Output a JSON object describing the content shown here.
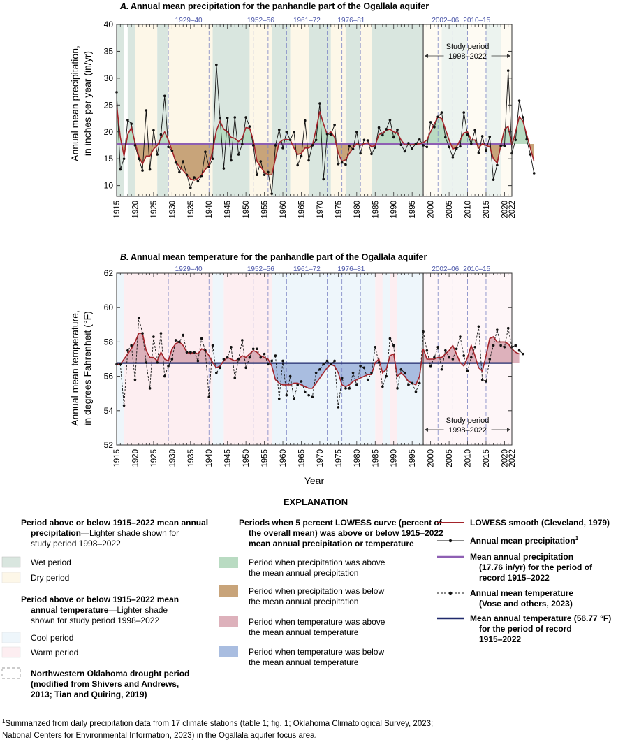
{
  "chart_data": [
    {
      "type": "line",
      "title_letter": "A.",
      "title": "Annual mean precipitation for the panhandle part of the Ogallala aquifer",
      "ylabel_line1": "Annual mean precipitation,",
      "ylabel_line2": "in inches per year (in/yr)",
      "xlabel": "",
      "ylim": [
        8,
        40
      ],
      "yticks": [
        10,
        15,
        20,
        25,
        30,
        35,
        40
      ],
      "xlim": [
        1915,
        2022
      ],
      "xticks": [
        1915,
        1920,
        1925,
        1930,
        1935,
        1940,
        1945,
        1950,
        1955,
        1960,
        1965,
        1970,
        1975,
        1980,
        1985,
        1990,
        1995,
        2000,
        2005,
        2010,
        2015,
        2020,
        2022
      ],
      "mean_line": 17.76,
      "study_label_line1": "Study period",
      "study_label_line2": "1998–2022",
      "study_start": 1998,
      "periods": [
        {
          "start": 1915,
          "end": 1917,
          "kind": "wet"
        },
        {
          "start": 1918,
          "end": 1920,
          "kind": "wet"
        },
        {
          "start": 1920,
          "end": 1926,
          "kind": "dry"
        },
        {
          "start": 1926,
          "end": 1929,
          "kind": "wet"
        },
        {
          "start": 1929,
          "end": 1941,
          "kind": "dry"
        },
        {
          "start": 1941,
          "end": 1951,
          "kind": "wet"
        },
        {
          "start": 1951,
          "end": 1957,
          "kind": "dry"
        },
        {
          "start": 1957,
          "end": 1962,
          "kind": "wet"
        },
        {
          "start": 1962,
          "end": 1967,
          "kind": "dry"
        },
        {
          "start": 1967,
          "end": 1973,
          "kind": "wet"
        },
        {
          "start": 1973,
          "end": 1977,
          "kind": "dry"
        },
        {
          "start": 1977,
          "end": 1981,
          "kind": "wet"
        },
        {
          "start": 1981,
          "end": 1984,
          "kind": "dry"
        },
        {
          "start": 1984,
          "end": 1998,
          "kind": "wet"
        },
        {
          "start": 1998,
          "end": 2003,
          "kind": "dry"
        },
        {
          "start": 2003,
          "end": 2010,
          "kind": "wet"
        },
        {
          "start": 2010,
          "end": 2015,
          "kind": "dry"
        },
        {
          "start": 2015,
          "end": 2019,
          "kind": "wet"
        },
        {
          "start": 2019,
          "end": 2022,
          "kind": "dry"
        }
      ],
      "droughts": [
        {
          "start": 1929,
          "end": 1940,
          "label": "1929–40"
        },
        {
          "start": 1952,
          "end": 1956,
          "label": "1952–56"
        },
        {
          "start": 1961,
          "end": 1972,
          "label": "1961–72"
        },
        {
          "start": 1976,
          "end": 1981,
          "label": "1976–81"
        },
        {
          "start": 2002,
          "end": 2006,
          "label": "2002–06"
        },
        {
          "start": 2010,
          "end": 2015,
          "label": "2010–15"
        }
      ],
      "series": [
        {
          "name": "Annual mean precipitation",
          "values": [
            27.4,
            13.0,
            15.0,
            22.2,
            21.5,
            17.5,
            15.0,
            12.8,
            24.0,
            13.0,
            20.3,
            15.8,
            19.5,
            26.7,
            17.2,
            16.5,
            14.3,
            12.5,
            14.5,
            12.0,
            9.6,
            11.5,
            10.8,
            11.7,
            16.3,
            13.5,
            15.0,
            32.5,
            22.5,
            13.2,
            22.6,
            14.7,
            22.7,
            15.8,
            17.7,
            22.7,
            21.0,
            17.5,
            12.0,
            14.5,
            12.0,
            12.5,
            8.5,
            17.5,
            20.4,
            17.0,
            20.0,
            18.5,
            20.0,
            13.8,
            15.5,
            22.1,
            14.7,
            17.5,
            18.5,
            25.3,
            11.2,
            19.6,
            19.5,
            21.3,
            14.0,
            14.3,
            13.9,
            17.3,
            16.8,
            20.0,
            16.0,
            18.5,
            18.4,
            15.9,
            17.1,
            20.8,
            19.4,
            20.5,
            22.2,
            19.0,
            20.4,
            17.6,
            16.4,
            17.9,
            16.9,
            17.8,
            18.6,
            17.5,
            17.2,
            21.8,
            20.9,
            22.8,
            23.6,
            19.0,
            17.2,
            15.3,
            16.9,
            17.3,
            23.6,
            19.5,
            17.8,
            20.3,
            16.1,
            19.2,
            16.5,
            19.1,
            11.1,
            13.8,
            17.4,
            17.4,
            31.4,
            16.0,
            18.5,
            25.8,
            22.7,
            18.6,
            15.8,
            12.3
          ]
        },
        {
          "name": "LOWESS smooth",
          "values": [
            25.0,
            19.0,
            15.5,
            19.5,
            20.8,
            18.0,
            15.5,
            14.0,
            15.5,
            15.5,
            16.8,
            17.5,
            18.8,
            20.0,
            18.5,
            16.5,
            14.5,
            13.5,
            12.8,
            12.0,
            11.2,
            11.0,
            11.3,
            12.0,
            13.0,
            13.8,
            16.5,
            20.2,
            22.0,
            20.5,
            20.0,
            19.0,
            18.8,
            18.2,
            18.8,
            20.8,
            20.7,
            18.5,
            14.5,
            13.5,
            12.5,
            12.0,
            12.0,
            15.0,
            18.0,
            18.5,
            18.6,
            18.5,
            17.0,
            15.8,
            16.0,
            17.0,
            17.0,
            17.5,
            20.5,
            23.8,
            21.5,
            19.5,
            20.0,
            19.0,
            16.0,
            14.5,
            14.8,
            16.0,
            17.0,
            17.8,
            17.5,
            17.8,
            18.0,
            17.2,
            17.5,
            19.5,
            19.8,
            20.3,
            20.5,
            20.0,
            19.8,
            18.5,
            17.6,
            17.6,
            17.6,
            17.7,
            17.8,
            18.0,
            18.5,
            20.0,
            21.5,
            22.8,
            22.5,
            20.5,
            18.5,
            16.8,
            17.2,
            18.5,
            19.8,
            20.0,
            18.5,
            18.5,
            17.0,
            17.8,
            17.5,
            17.2,
            15.0,
            14.2,
            17.5,
            20.5,
            21.0,
            17.5,
            20.0,
            22.8,
            22.0,
            19.5,
            17.0,
            14.5
          ]
        }
      ]
    },
    {
      "type": "line",
      "title_letter": "B.",
      "title": "Annual mean temperature for the panhandle part of the Ogallala aquifer",
      "ylabel_line1": "Annual mean temperature,",
      "ylabel_line2": "in degrees Fahrenheit (°F)",
      "xlabel": "Year",
      "ylim": [
        52,
        62
      ],
      "yticks": [
        52,
        54,
        56,
        58,
        60,
        62
      ],
      "xlim": [
        1915,
        2022
      ],
      "xticks": [
        1915,
        1920,
        1925,
        1930,
        1935,
        1940,
        1945,
        1950,
        1955,
        1960,
        1965,
        1970,
        1975,
        1980,
        1985,
        1990,
        1995,
        2000,
        2005,
        2010,
        2015,
        2020,
        2022
      ],
      "mean_line": 56.77,
      "study_label_line1": "Study period",
      "study_label_line2": "1998–2022",
      "study_start": 1998,
      "periods": [
        {
          "start": 1915,
          "end": 1917,
          "kind": "cool"
        },
        {
          "start": 1917,
          "end": 1941,
          "kind": "warm"
        },
        {
          "start": 1941,
          "end": 1944,
          "kind": "cool"
        },
        {
          "start": 1944,
          "end": 1957,
          "kind": "warm"
        },
        {
          "start": 1957,
          "end": 1985,
          "kind": "cool"
        },
        {
          "start": 1985,
          "end": 1987,
          "kind": "warm"
        },
        {
          "start": 1987,
          "end": 1989,
          "kind": "cool"
        },
        {
          "start": 1989,
          "end": 1991,
          "kind": "warm"
        },
        {
          "start": 1991,
          "end": 1998,
          "kind": "cool"
        },
        {
          "start": 1998,
          "end": 2022,
          "kind": "warm"
        }
      ],
      "droughts": [
        {
          "start": 1929,
          "end": 1940,
          "label": "1929–40"
        },
        {
          "start": 1952,
          "end": 1956,
          "label": "1952–56"
        },
        {
          "start": 1961,
          "end": 1972,
          "label": "1961–72"
        },
        {
          "start": 1976,
          "end": 1981,
          "label": "1976–81"
        },
        {
          "start": 2002,
          "end": 2006,
          "label": "2002–06"
        },
        {
          "start": 2010,
          "end": 2015,
          "label": "2010–15"
        }
      ],
      "series": [
        {
          "name": "Annual mean temperature",
          "values": [
            56.7,
            56.7,
            54.3,
            57.5,
            57.8,
            55.8,
            59.4,
            58.5,
            56.8,
            55.3,
            58.3,
            56.8,
            58.5,
            56.0,
            56.6,
            57.0,
            58.1,
            58.0,
            58.4,
            57.4,
            57.4,
            57.4,
            56.9,
            58.2,
            57.5,
            54.8,
            57.8,
            56.2,
            56.5,
            57.0,
            57.1,
            57.7,
            55.9,
            57.0,
            58.1,
            56.5,
            57.1,
            57.6,
            57.6,
            57.1,
            57.3,
            56.7,
            56.9,
            57.2,
            54.7,
            56.9,
            54.9,
            56.0,
            54.7,
            55.5,
            55.7,
            55.1,
            54.9,
            54.8,
            56.2,
            56.4,
            56.7,
            56.9,
            56.7,
            56.9,
            54.2,
            55.9,
            55.3,
            55.3,
            56.2,
            55.5,
            56.6,
            56.5,
            55.8,
            56.2,
            57.7,
            56.8,
            55.4,
            56.0,
            58.2,
            57.8,
            55.3,
            56.4,
            56.2,
            55.5,
            55.6,
            55.1,
            55.6,
            58.6,
            57.5,
            56.6,
            57.1,
            57.7,
            56.4,
            57.5,
            57.1,
            57.0,
            57.6,
            58.3,
            57.2,
            56.3,
            57.1,
            57.7,
            58.9,
            55.8,
            55.7,
            57.0,
            57.8,
            58.7,
            57.8,
            57.7,
            58.8,
            57.7,
            57.8,
            57.5,
            57.3
          ]
        },
        {
          "name": "LOWESS smooth",
          "values": [
            56.7,
            56.7,
            57.0,
            57.3,
            57.6,
            58.0,
            58.5,
            58.5,
            57.5,
            57.1,
            57.1,
            56.9,
            57.4,
            57.0,
            56.9,
            57.6,
            57.9,
            58.0,
            57.8,
            57.4,
            57.3,
            57.4,
            57.3,
            57.6,
            57.5,
            57.2,
            56.8,
            56.5,
            56.6,
            56.9,
            57.1,
            57.0,
            56.9,
            57.0,
            57.2,
            57.1,
            57.3,
            57.5,
            57.4,
            57.2,
            57.1,
            57.0,
            56.6,
            55.8,
            55.6,
            55.5,
            55.5,
            55.5,
            55.6,
            55.6,
            55.5,
            55.4,
            55.3,
            55.3,
            55.6,
            55.9,
            56.2,
            56.5,
            56.7,
            56.6,
            56.2,
            55.5,
            55.4,
            55.5,
            55.7,
            55.8,
            55.9,
            56.0,
            56.1,
            56.1,
            56.8,
            57.0,
            56.2,
            56.4,
            57.2,
            57.3,
            56.0,
            56.2,
            56.0,
            55.7,
            55.6,
            55.5,
            56.0,
            57.6,
            57.0,
            57.0,
            57.0,
            57.1,
            57.1,
            57.3,
            57.5,
            57.8,
            57.3,
            56.8,
            56.6,
            57.1,
            57.8,
            57.2,
            56.5,
            56.3,
            57.2,
            58.2,
            58.3,
            58.0,
            58.0,
            58.0,
            57.9,
            57.6,
            57.4,
            57.3
          ]
        }
      ]
    }
  ],
  "legend": {
    "title": "EXPLANATION",
    "col1_title1": "Period above or below 1915–2022 mean annual",
    "col1_title1b": "precipitation",
    "col1_title1c": "—Lighter shade shown for",
    "col1_title1d": "study period 1998–2022",
    "wet": "Wet period",
    "dry": "Dry period",
    "col1_title2a": "Period above or below 1915–2022 mean",
    "col1_title2b": "annual temperature",
    "col1_title2c": "—Lighter shade",
    "col1_title2d": "shown for study period 1998–2022",
    "cool": "Cool period",
    "warm": "Warm period",
    "drought_line1": "Northwestern Oklahoma drought period",
    "drought_line2": "(modified from Shivers and Andrews,",
    "drought_line3": "2013; Tian and Quiring, 2019)",
    "col2_title1": "Periods when 5 percent LOWESS curve (percent of",
    "col2_title2": "the overall mean) was above or below 1915–2022",
    "col2_title3": "mean annual precipitation or temperature",
    "precip_above1": "Period when precipitation was above",
    "precip_above2": "the mean annual precipitation",
    "precip_below1": "Period when precipitation was below",
    "precip_below2": "the mean annual precipitation",
    "temp_above1": "Period when temperature was above",
    "temp_above2": "the mean annual temperature",
    "temp_below1": "Period when temperature was below",
    "temp_below2": "the mean annual temperature",
    "lowess": "LOWESS smooth (Cleveland, 1979)",
    "precip_series": "Annual mean precipitation",
    "precip_sup": "1",
    "mean_precip1": "Mean annual precipitation",
    "mean_precip2": "(17.76 in/yr) for the period of",
    "mean_precip3": "record 1915–2022",
    "temp_series1": "Annual mean temperature",
    "temp_series2": "(Vose and others, 2023)",
    "mean_temp1": "Mean annual temperature (56.77 °F)",
    "mean_temp2": "for the period of record",
    "mean_temp3": "1915–2022"
  },
  "footnote": {
    "sup": "1",
    "line1": "Summarized from daily precipitation data from 17 climate stations (table 1; fig. 1; Oklahoma Climatological Survey, 2023;",
    "line2": "National Centers for Environmental Information, 2023) in the Ogallala aquifer focus area."
  },
  "colors": {
    "wet": "#d9e6df",
    "dry": "#fdf7e8",
    "wet_light": "#ecf3ef",
    "dry_light": "#fefbf3",
    "cool": "#eef6fb",
    "warm": "#fdeef1",
    "cool_light": "#f6fafd",
    "warm_light": "#fef6f8",
    "precip_above": "#b9dbc2",
    "precip_below": "#c8a47a",
    "temp_above": "#ddb1bb",
    "temp_below": "#a9bde0",
    "lowess": "#a3232a",
    "mean_precip": "#8e5fb3",
    "mean_temp": "#202a6c",
    "drought_box": "#7b84c4"
  }
}
